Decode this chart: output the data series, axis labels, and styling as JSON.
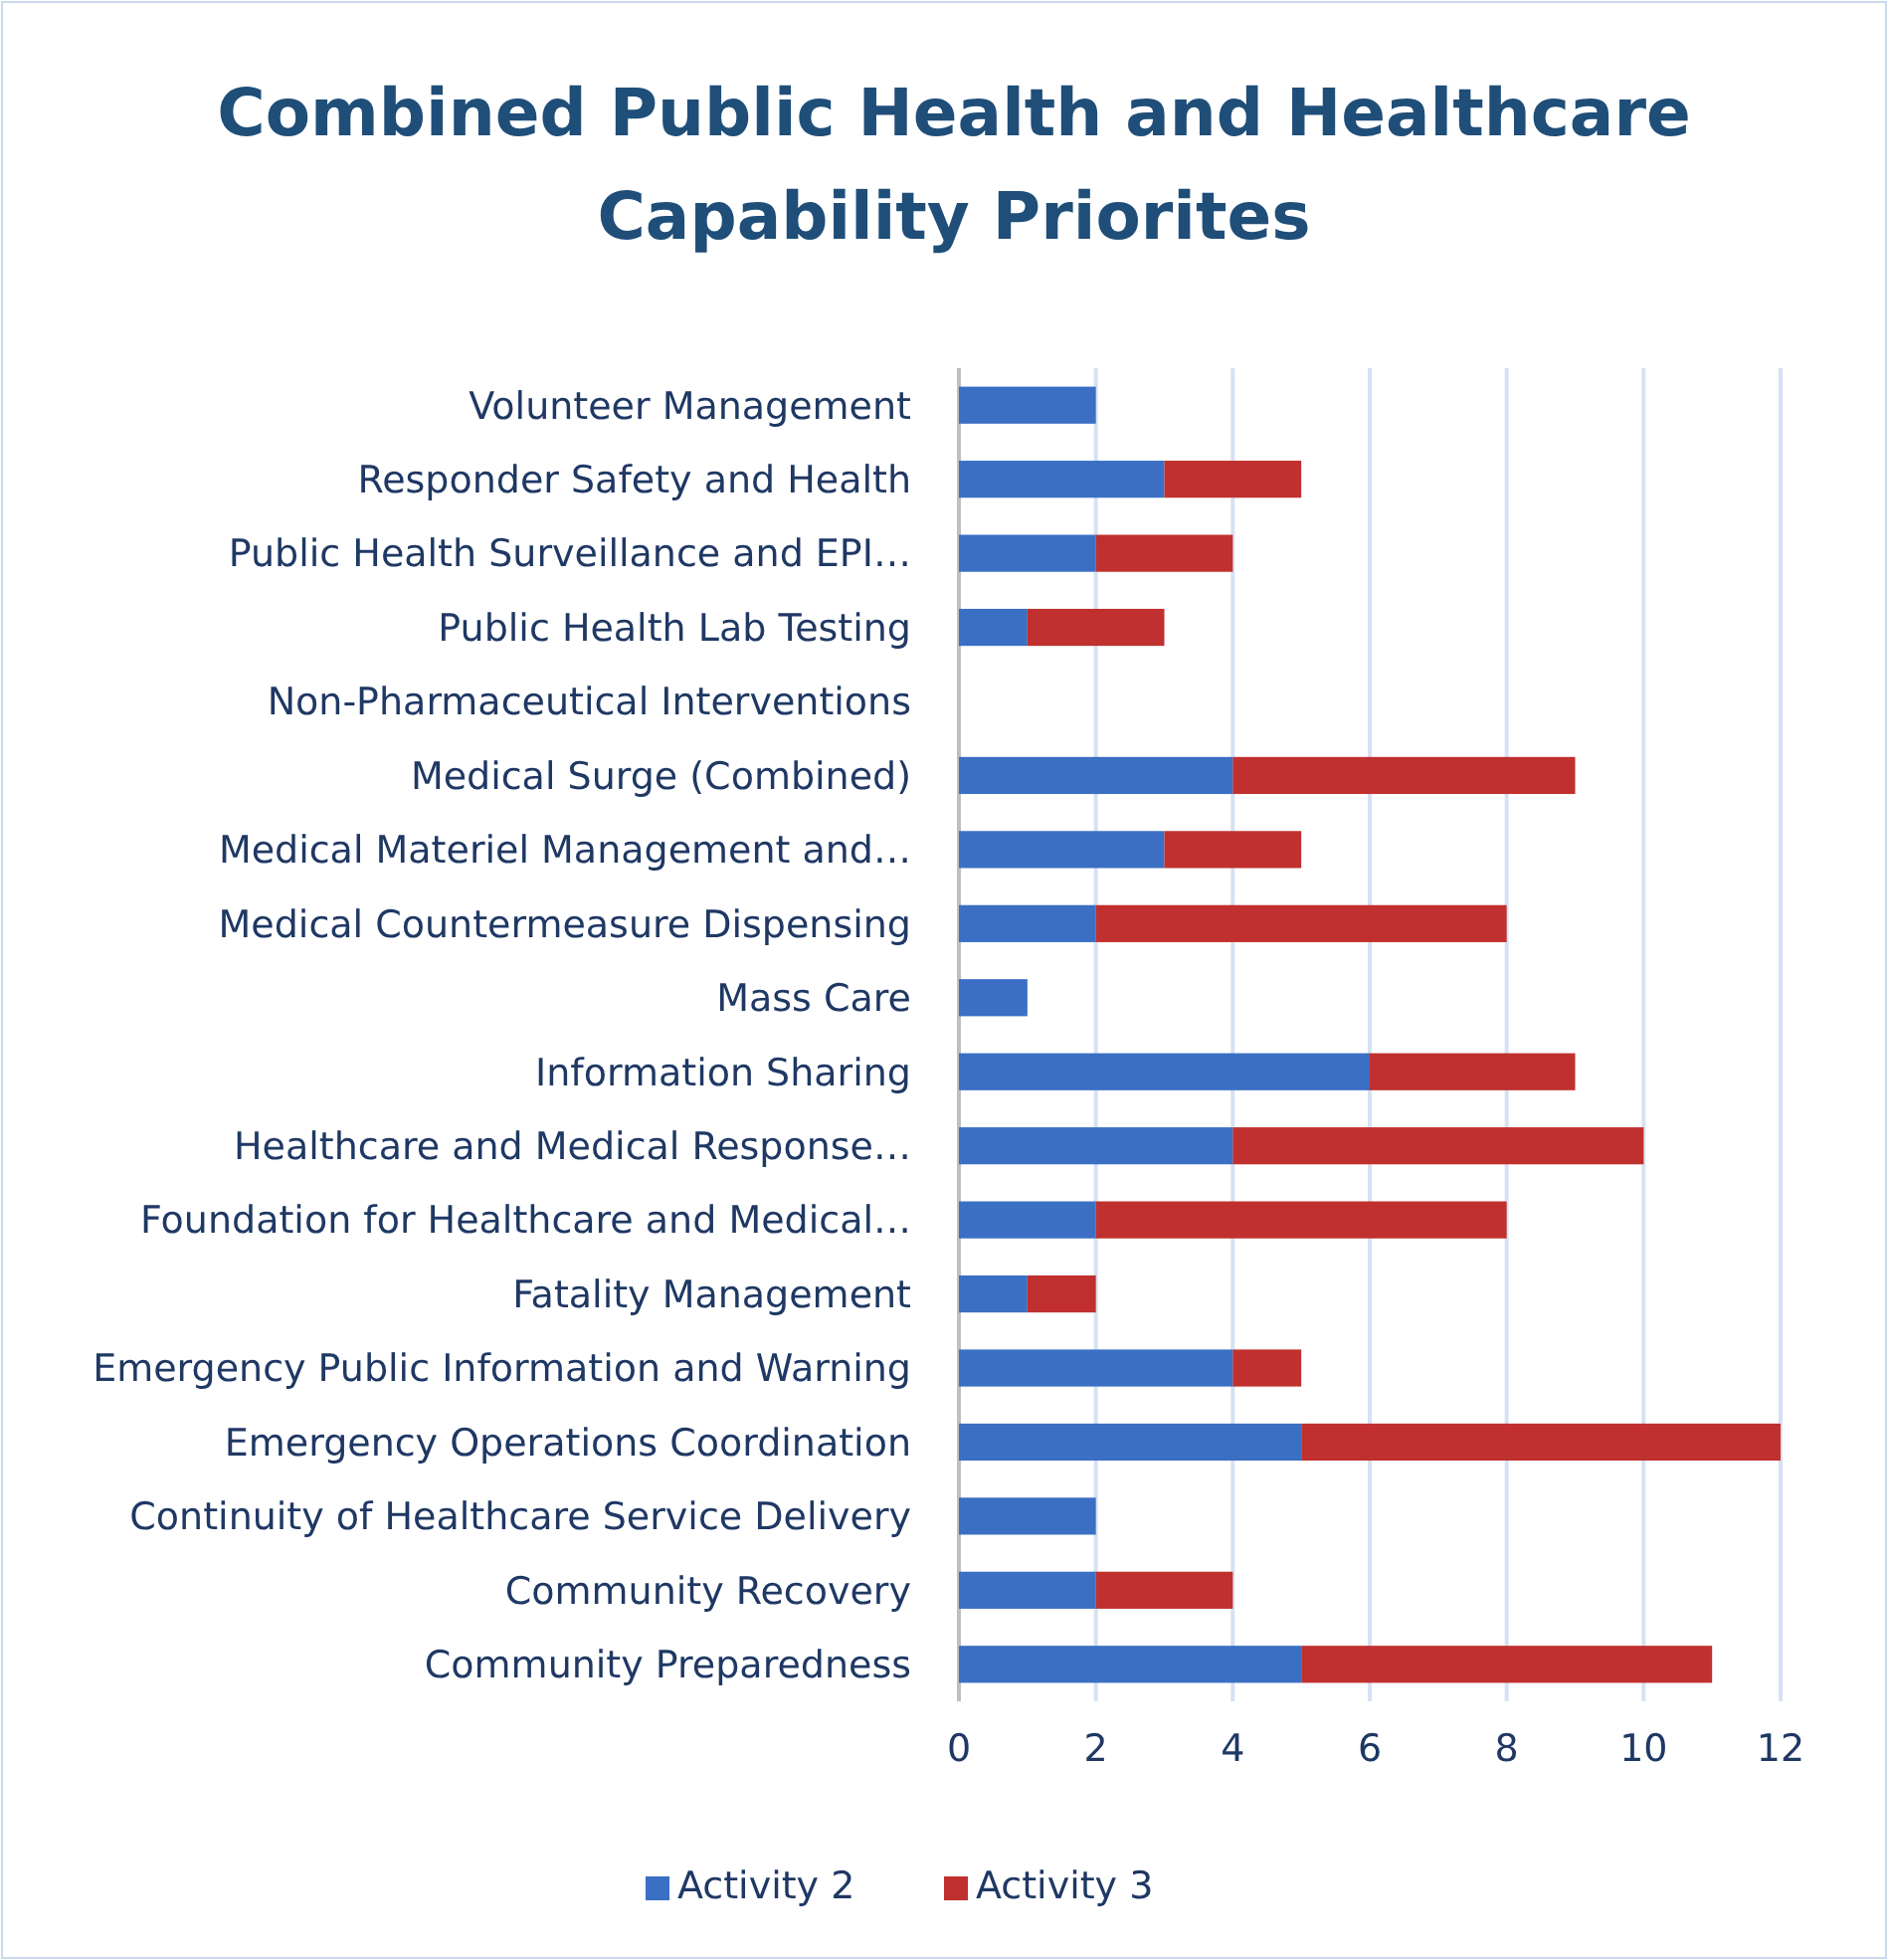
{
  "chart_data": {
    "type": "bar",
    "orientation": "horizontal",
    "stacked": true,
    "title": "Combined Public Health and Healthcare Capability Priorites",
    "categories": [
      "Volunteer Management",
      "Responder Safety and Health",
      "Public Health Surveillance and EPI…",
      "Public Health Lab Testing",
      "Non-Pharmaceutical Interventions",
      "Medical Surge (Combined)",
      "Medical Materiel Management and…",
      "Medical Countermeasure Dispensing",
      "Mass Care",
      "Information Sharing",
      "Healthcare and Medical Response…",
      "Foundation for Healthcare and Medical…",
      "Fatality Management",
      "Emergency Public Information and Warning",
      "Emergency Operations Coordination",
      "Continuity of Healthcare Service Delivery",
      "Community Recovery",
      "Community Preparedness"
    ],
    "series": [
      {
        "name": "Activity 2",
        "color": "#3a6fc4",
        "values": [
          2,
          3,
          2,
          1,
          0,
          4,
          3,
          2,
          1,
          6,
          4,
          2,
          1,
          4,
          5,
          2,
          2,
          5
        ]
      },
      {
        "name": "Activity 3",
        "color": "#c0302e",
        "values": [
          0,
          2,
          2,
          2,
          0,
          5,
          2,
          6,
          0,
          3,
          6,
          6,
          1,
          1,
          7,
          0,
          2,
          6
        ]
      }
    ],
    "xlim": [
      0,
      12
    ],
    "xticks": [
      0,
      2,
      4,
      6,
      8,
      10,
      12
    ],
    "grid": "x",
    "legend": "bottom"
  }
}
